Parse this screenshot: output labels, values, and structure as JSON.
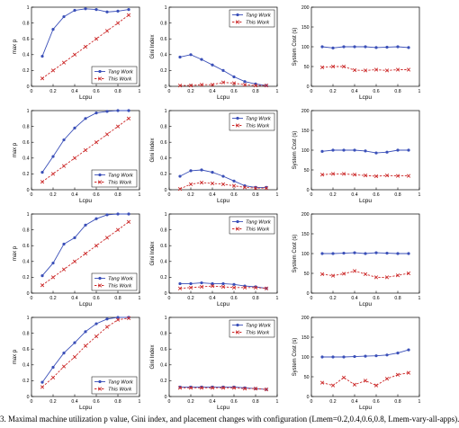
{
  "caption": "3.   Maximal machine utilization p value, Gini index, and placement changes with configuration (Lmem=0.2,0.4,0.6,0.8, Lmem-vary-all-apps).",
  "legend": {
    "tang": "Tang Work",
    "this": "This Work"
  },
  "colors": {
    "tang": "#3a4fb8",
    "this": "#cc2a2a",
    "axis": "#000000"
  },
  "chart_data": [
    {
      "type": "line",
      "row": 0,
      "col": 0,
      "ylabel": "max p",
      "xlabel": "Lcpu",
      "xlim": [
        0,
        1
      ],
      "ylim": [
        0,
        1
      ],
      "xticks": [
        "0",
        "0.2",
        "0.4",
        "0.6",
        "0.8",
        "1"
      ],
      "yticks": [
        "0",
        "0.2",
        "0.4",
        "0.6",
        "0.8",
        "1"
      ],
      "legend_position": "bottom-right",
      "x": [
        0.1,
        0.2,
        0.3,
        0.4,
        0.5,
        0.6,
        0.7,
        0.8,
        0.9
      ],
      "series": [
        {
          "name": "Tang Work",
          "values": [
            0.38,
            0.72,
            0.88,
            0.96,
            0.98,
            0.97,
            0.94,
            0.95,
            0.97
          ]
        },
        {
          "name": "This Work",
          "values": [
            0.1,
            0.2,
            0.3,
            0.4,
            0.5,
            0.6,
            0.7,
            0.8,
            0.9
          ]
        }
      ]
    },
    {
      "type": "line",
      "row": 0,
      "col": 1,
      "ylabel": "Gini Index",
      "xlabel": "Lcpu",
      "xlim": [
        0,
        1
      ],
      "ylim": [
        0,
        1
      ],
      "xticks": [
        "0",
        "0.2",
        "0.4",
        "0.6",
        "0.8",
        "1"
      ],
      "yticks": [
        "0",
        "0.2",
        "0.4",
        "0.6",
        "0.8",
        "1"
      ],
      "legend_position": "top-right",
      "x": [
        0.1,
        0.2,
        0.3,
        0.4,
        0.5,
        0.6,
        0.7,
        0.8,
        0.9
      ],
      "series": [
        {
          "name": "Tang Work",
          "values": [
            0.37,
            0.4,
            0.34,
            0.27,
            0.2,
            0.12,
            0.06,
            0.03,
            0.01
          ]
        },
        {
          "name": "This Work",
          "values": [
            0.01,
            0.01,
            0.02,
            0.02,
            0.05,
            0.04,
            0.02,
            0.01,
            0.01
          ]
        }
      ]
    },
    {
      "type": "line",
      "row": 0,
      "col": 2,
      "ylabel": "System Cost (s)",
      "xlabel": "Lcpu",
      "xlim": [
        0,
        1
      ],
      "ylim": [
        0,
        200
      ],
      "xticks": [
        "0",
        "0.2",
        "0.4",
        "0.6",
        "0.8",
        "1"
      ],
      "yticks": [
        "0",
        "50",
        "100",
        "150",
        "200"
      ],
      "legend_position": "none",
      "x": [
        0.1,
        0.2,
        0.3,
        0.4,
        0.5,
        0.6,
        0.7,
        0.8,
        0.9
      ],
      "series": [
        {
          "name": "Tang Work",
          "values": [
            100,
            97,
            100,
            100,
            100,
            98,
            99,
            100,
            98
          ]
        },
        {
          "name": "This Work",
          "values": [
            48,
            50,
            50,
            41,
            40,
            42,
            40,
            42,
            42
          ]
        }
      ]
    },
    {
      "type": "line",
      "row": 1,
      "col": 0,
      "ylabel": "max p",
      "xlabel": "Lcpu",
      "xlim": [
        0,
        1
      ],
      "ylim": [
        0,
        1
      ],
      "xticks": [
        "0",
        "0.2",
        "0.4",
        "0.6",
        "0.8",
        "1"
      ],
      "yticks": [
        "0",
        "0.2",
        "0.4",
        "0.6",
        "0.8",
        "1"
      ],
      "legend_position": "bottom-right",
      "x": [
        0.1,
        0.2,
        0.3,
        0.4,
        0.5,
        0.6,
        0.7,
        0.8,
        0.9
      ],
      "series": [
        {
          "name": "Tang Work",
          "values": [
            0.22,
            0.42,
            0.63,
            0.78,
            0.9,
            0.97,
            0.99,
            1.0,
            1.0
          ]
        },
        {
          "name": "This Work",
          "values": [
            0.1,
            0.2,
            0.3,
            0.4,
            0.5,
            0.6,
            0.7,
            0.8,
            0.9
          ]
        }
      ]
    },
    {
      "type": "line",
      "row": 1,
      "col": 1,
      "ylabel": "Gini Index",
      "xlabel": "Lcpu",
      "xlim": [
        0,
        1
      ],
      "ylim": [
        0,
        1
      ],
      "xticks": [
        "0",
        "0.2",
        "0.4",
        "0.6",
        "0.8",
        "1"
      ],
      "yticks": [
        "0",
        "0.2",
        "0.4",
        "0.6",
        "0.8",
        "1"
      ],
      "legend_position": "top-right",
      "x": [
        0.1,
        0.2,
        0.3,
        0.4,
        0.5,
        0.6,
        0.7,
        0.8,
        0.9
      ],
      "series": [
        {
          "name": "Tang Work",
          "values": [
            0.17,
            0.24,
            0.25,
            0.22,
            0.17,
            0.11,
            0.05,
            0.03,
            0.03
          ]
        },
        {
          "name": "This Work",
          "values": [
            0.01,
            0.07,
            0.09,
            0.08,
            0.07,
            0.05,
            0.03,
            0.02,
            0.02
          ]
        }
      ]
    },
    {
      "type": "line",
      "row": 1,
      "col": 2,
      "ylabel": "System Cost (s)",
      "xlabel": "Lcpu",
      "xlim": [
        0,
        1
      ],
      "ylim": [
        0,
        200
      ],
      "xticks": [
        "0",
        "0.2",
        "0.4",
        "0.6",
        "0.8",
        "1"
      ],
      "yticks": [
        "0",
        "50",
        "100",
        "150",
        "200"
      ],
      "legend_position": "none",
      "x": [
        0.1,
        0.2,
        0.3,
        0.4,
        0.5,
        0.6,
        0.7,
        0.8,
        0.9
      ],
      "series": [
        {
          "name": "Tang Work",
          "values": [
            97,
            100,
            100,
            100,
            98,
            93,
            95,
            100,
            100
          ]
        },
        {
          "name": "This Work",
          "values": [
            38,
            40,
            40,
            38,
            36,
            34,
            36,
            35,
            35
          ]
        }
      ]
    },
    {
      "type": "line",
      "row": 2,
      "col": 0,
      "ylabel": "max p",
      "xlabel": "Lcpu",
      "xlim": [
        0,
        1
      ],
      "ylim": [
        0,
        1
      ],
      "xticks": [
        "0",
        "0.2",
        "0.4",
        "0.6",
        "0.8",
        "1"
      ],
      "yticks": [
        "0",
        "0.2",
        "0.4",
        "0.6",
        "0.8",
        "1"
      ],
      "legend_position": "bottom-right",
      "x": [
        0.1,
        0.2,
        0.3,
        0.4,
        0.5,
        0.6,
        0.7,
        0.8,
        0.9
      ],
      "series": [
        {
          "name": "Tang Work",
          "values": [
            0.22,
            0.38,
            0.62,
            0.7,
            0.86,
            0.94,
            0.99,
            1.0,
            1.0
          ]
        },
        {
          "name": "This Work",
          "values": [
            0.1,
            0.2,
            0.3,
            0.4,
            0.5,
            0.6,
            0.7,
            0.8,
            0.9
          ]
        }
      ]
    },
    {
      "type": "line",
      "row": 2,
      "col": 1,
      "ylabel": "Gini Index",
      "xlabel": "Lcpu",
      "xlim": [
        0,
        1
      ],
      "ylim": [
        0,
        1
      ],
      "xticks": [
        "0",
        "0.2",
        "0.4",
        "0.6",
        "0.8",
        "1"
      ],
      "yticks": [
        "0",
        "0.2",
        "0.4",
        "0.6",
        "0.8",
        "1"
      ],
      "legend_position": "top-right",
      "x": [
        0.1,
        0.2,
        0.3,
        0.4,
        0.5,
        0.6,
        0.7,
        0.8,
        0.9
      ],
      "series": [
        {
          "name": "Tang Work",
          "values": [
            0.12,
            0.12,
            0.13,
            0.12,
            0.12,
            0.11,
            0.09,
            0.08,
            0.06
          ]
        },
        {
          "name": "This Work",
          "values": [
            0.06,
            0.07,
            0.08,
            0.09,
            0.08,
            0.07,
            0.07,
            0.07,
            0.06
          ]
        }
      ]
    },
    {
      "type": "line",
      "row": 2,
      "col": 2,
      "ylabel": "System Cost (s)",
      "xlabel": "Lcpu",
      "xlim": [
        0,
        1
      ],
      "ylim": [
        0,
        200
      ],
      "xticks": [
        "0",
        "0.2",
        "0.4",
        "0.6",
        "0.8",
        "1"
      ],
      "yticks": [
        "0",
        "50",
        "100",
        "150",
        "200"
      ],
      "legend_position": "none",
      "x": [
        0.1,
        0.2,
        0.3,
        0.4,
        0.5,
        0.6,
        0.7,
        0.8,
        0.9
      ],
      "series": [
        {
          "name": "Tang Work",
          "values": [
            100,
            100,
            101,
            102,
            100,
            102,
            101,
            100,
            100
          ]
        },
        {
          "name": "This Work",
          "values": [
            48,
            44,
            49,
            56,
            48,
            40,
            40,
            45,
            50
          ]
        }
      ]
    },
    {
      "type": "line",
      "row": 3,
      "col": 0,
      "ylabel": "max p",
      "xlabel": "Lcpu",
      "xlim": [
        0,
        1
      ],
      "ylim": [
        0,
        1
      ],
      "xticks": [
        "0",
        "0.2",
        "0.4",
        "0.6",
        "0.8",
        "1"
      ],
      "yticks": [
        "0",
        "0.2",
        "0.4",
        "0.6",
        "0.8",
        "1"
      ],
      "legend_position": "bottom-right",
      "x": [
        0.1,
        0.2,
        0.3,
        0.4,
        0.5,
        0.6,
        0.7,
        0.8,
        0.9
      ],
      "series": [
        {
          "name": "Tang Work",
          "values": [
            0.18,
            0.37,
            0.55,
            0.68,
            0.82,
            0.92,
            0.98,
            1.0,
            1.0
          ]
        },
        {
          "name": "This Work",
          "values": [
            0.12,
            0.24,
            0.38,
            0.5,
            0.64,
            0.76,
            0.88,
            0.97,
            0.99
          ]
        }
      ]
    },
    {
      "type": "line",
      "row": 3,
      "col": 1,
      "ylabel": "Gini Index",
      "xlabel": "Lcpu",
      "xlim": [
        0,
        1
      ],
      "ylim": [
        0,
        1
      ],
      "xticks": [
        "0",
        "0.2",
        "0.4",
        "0.6",
        "0.8",
        "1"
      ],
      "yticks": [
        "0",
        "0.2",
        "0.4",
        "0.6",
        "0.8",
        "1"
      ],
      "legend_position": "top-right",
      "x": [
        0.1,
        0.2,
        0.3,
        0.4,
        0.5,
        0.6,
        0.7,
        0.8,
        0.9
      ],
      "series": [
        {
          "name": "Tang Work",
          "values": [
            0.12,
            0.12,
            0.12,
            0.12,
            0.12,
            0.12,
            0.11,
            0.1,
            0.09
          ]
        },
        {
          "name": "This Work",
          "values": [
            0.11,
            0.11,
            0.11,
            0.11,
            0.11,
            0.11,
            0.1,
            0.1,
            0.09
          ]
        }
      ]
    },
    {
      "type": "line",
      "row": 3,
      "col": 2,
      "ylabel": "System Cost (s)",
      "xlabel": "Lcpu",
      "xlim": [
        0,
        1
      ],
      "ylim": [
        0,
        200
      ],
      "xticks": [
        "0",
        "0.2",
        "0.4",
        "0.6",
        "0.8",
        "1"
      ],
      "yticks": [
        "0",
        "50",
        "100",
        "150",
        "200"
      ],
      "legend_position": "none",
      "x": [
        0.1,
        0.2,
        0.3,
        0.4,
        0.5,
        0.6,
        0.7,
        0.8,
        0.9
      ],
      "series": [
        {
          "name": "Tang Work",
          "values": [
            100,
            100,
            100,
            101,
            102,
            103,
            105,
            110,
            118
          ]
        },
        {
          "name": "This Work",
          "values": [
            35,
            28,
            48,
            30,
            40,
            28,
            45,
            55,
            60
          ]
        }
      ]
    }
  ]
}
